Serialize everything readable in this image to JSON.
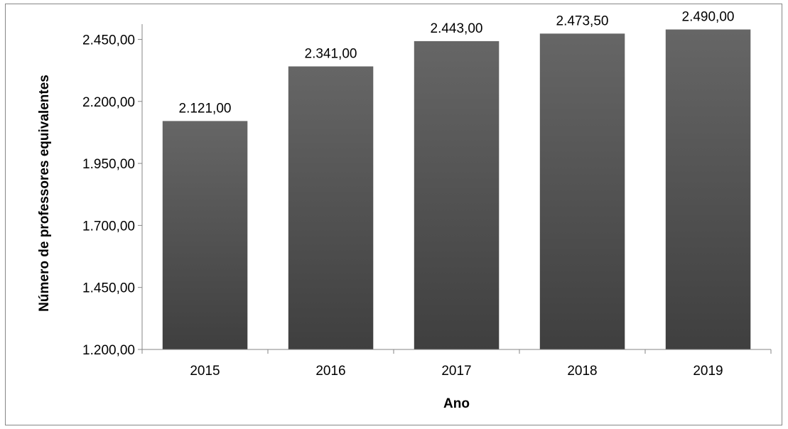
{
  "chart_data": {
    "type": "bar",
    "categories": [
      "2015",
      "2016",
      "2017",
      "2018",
      "2019"
    ],
    "values": [
      2121.0,
      2341.0,
      2443.0,
      2473.5,
      2490.0
    ],
    "value_labels": [
      "2.121,00",
      "2.341,00",
      "2.443,00",
      "2.473,50",
      "2.490,00"
    ],
    "ylim": [
      1200,
      2500
    ],
    "yticks": [
      1200,
      1450,
      1700,
      1950,
      2200,
      2450
    ],
    "ytick_labels": [
      "1.200,00",
      "1.450,00",
      "1.700,00",
      "1.950,00",
      "2.200,00",
      "2.450,00"
    ],
    "xlabel": "Ano",
    "ylabel": "Número de professores equivalentes",
    "grid": false,
    "legend": false,
    "colors": {
      "bar_top": "#666666",
      "bar_bottom": "#3f3f3f",
      "axis": "#868686"
    }
  }
}
